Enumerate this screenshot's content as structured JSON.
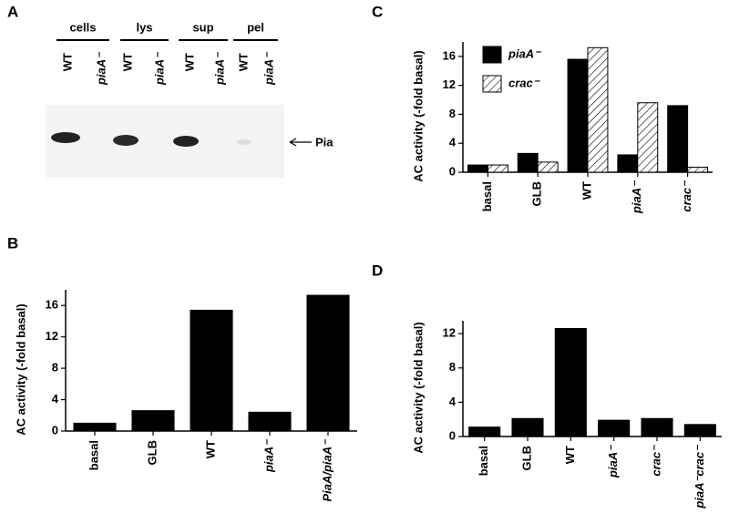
{
  "blot": {
    "label": "A",
    "groups": [
      "cells",
      "lys",
      "sup",
      "pel"
    ],
    "lanes": [
      "WT",
      "piaA⁻",
      "WT",
      "piaA⁻",
      "WT",
      "piaA⁻",
      "WT",
      "piaA⁻"
    ],
    "marker": "Pia"
  },
  "chart_data": [
    {
      "type": "bar",
      "label": "B",
      "ylabel": "AC activity (-fold basal)",
      "categories": [
        "basal",
        "GLB",
        "WT",
        "piaA⁻",
        "PiaA/piaA⁻"
      ],
      "series": [
        {
          "color": "#000000",
          "values": [
            1,
            2.6,
            15.4,
            2.4,
            17.3
          ]
        }
      ],
      "ylim": [
        0,
        18
      ],
      "yticks": [
        0,
        4,
        8,
        12,
        16
      ]
    },
    {
      "type": "bar",
      "label": "C",
      "ylabel": "AC activity (-fold basal)",
      "categories": [
        "basal",
        "GLB",
        "WT",
        "piaA⁻",
        "crac⁻"
      ],
      "series": [
        {
          "name": "piaA⁻",
          "color": "#000000",
          "values": [
            1,
            2.6,
            15.6,
            2.4,
            9.2
          ]
        },
        {
          "name": "crac⁻",
          "color": "#ffffff",
          "hatch": true,
          "values": [
            1,
            1.4,
            17.2,
            9.6,
            0.7
          ]
        }
      ],
      "ylim": [
        0,
        18
      ],
      "yticks": [
        0,
        4,
        8,
        12,
        16
      ],
      "legend": "upper left"
    },
    {
      "type": "bar",
      "label": "D",
      "ylabel": "AC activity (-fold basal)",
      "categories": [
        "basal",
        "GLB",
        "WT",
        "piaA⁻",
        "crac⁻",
        "piaA⁻crac⁻"
      ],
      "series": [
        {
          "color": "#000000",
          "values": [
            1.1,
            2.1,
            12.6,
            1.9,
            2.1,
            1.4
          ]
        }
      ],
      "ylim": [
        0,
        13.5
      ],
      "yticks": [
        0,
        4,
        8,
        12
      ]
    }
  ]
}
